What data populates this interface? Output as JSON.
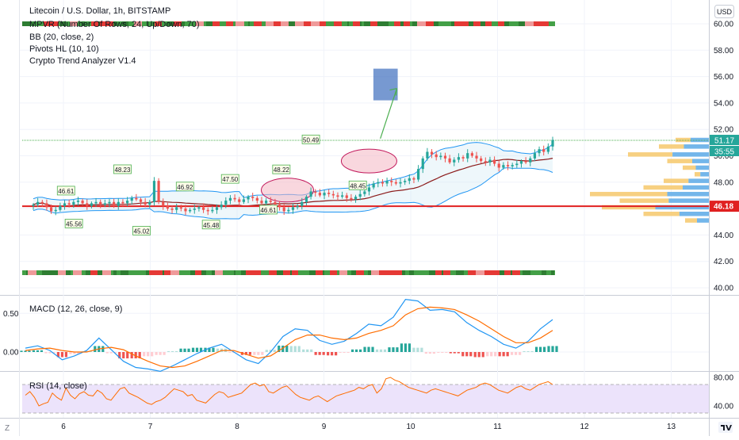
{
  "header": {
    "symbol_title": "Litecoin / U.S. Dollar, 1h, BITSTAMP",
    "indicators": [
      "MPVR (Number Of Rows, 24, Up/Down, 70)",
      "BB (20, close, 2)",
      "Pivots HL (10, 10)",
      "Crypto Trend Analyzer V1.4"
    ]
  },
  "currency_button": "USD",
  "scale_icons": {
    "left": "Z",
    "right": "tradingview-logo-icon"
  },
  "colors": {
    "up": "#26a69a",
    "down": "#ef5350",
    "bb": "#2196f3",
    "basis": "#8b1a1a",
    "support": "#e02020",
    "target_box": "#4a77c2",
    "macd": "#2196f3",
    "signal": "#ff6d00",
    "rsi": "#ff6d00",
    "rsi_band": "#ece3fb"
  },
  "chart_data": [
    {
      "type": "candlestick",
      "name": "price",
      "x_ticks": [
        "6",
        "7",
        "8",
        "9",
        "10",
        "11",
        "12",
        "13"
      ],
      "y_ticks": [
        "40.00",
        "42.00",
        "44.00",
        "46.00",
        "48.00",
        "50.00",
        "52.00",
        "54.00",
        "56.00",
        "58.00",
        "60.00"
      ],
      "ylim": [
        39.6,
        61.2
      ],
      "current_price": "51.17",
      "countdown": "35:55",
      "support_level": "46.18",
      "pivot_labels": [
        {
          "t": 0.3,
          "text": "46.61",
          "kind": "high"
        },
        {
          "t": 1.2,
          "text": "45.56",
          "kind": "low"
        },
        {
          "t": 6.8,
          "text": "48.23",
          "kind": "high"
        },
        {
          "t": 9.0,
          "text": "45.02",
          "kind": "low"
        },
        {
          "t": 14.0,
          "text": "46.92",
          "kind": "high"
        },
        {
          "t": 17.0,
          "text": "45.48",
          "kind": "low"
        },
        {
          "t": 19.2,
          "text": "47.50",
          "kind": "high"
        },
        {
          "t": 23.6,
          "text": "46.61",
          "kind": "low"
        },
        {
          "t": 25.1,
          "text": "48.22",
          "kind": "high"
        },
        {
          "t": 28.5,
          "text": "50.49",
          "kind": "high"
        },
        {
          "t": 33.9,
          "text": "48.45",
          "kind": "low"
        }
      ],
      "target_zone": {
        "t_from": 35.7,
        "t_to": 38.5,
        "low": 54.2,
        "high": 56.6
      },
      "arrow": {
        "t_from": 36.5,
        "t_to": 38.4,
        "from": 51.3,
        "to": 55.1
      },
      "closes": [
        46.3,
        46.5,
        46.4,
        46.1,
        45.8,
        45.9,
        46.2,
        46.4,
        46.3,
        46.5,
        46.6,
        46.4,
        46.2,
        46.4,
        46.5,
        46.3,
        46.4,
        46.5,
        46.2,
        46.5,
        46.4,
        46.6,
        46.8,
        46.7,
        46.5,
        46.3,
        46.5,
        48.1,
        46.5,
        46.2,
        46.0,
        45.9,
        46.1,
        46.0,
        45.8,
        45.9,
        46.0,
        46.1,
        45.9,
        45.8,
        45.9,
        46.1,
        46.3,
        46.6,
        46.8,
        46.7,
        46.5,
        46.7,
        46.9,
        46.8,
        46.6,
        46.4,
        46.6,
        46.5,
        46.3,
        46.1,
        45.8,
        45.9,
        46.1,
        46.2,
        46.5,
        46.9,
        47.3,
        47.2,
        47.0,
        47.2,
        47.1,
        47.0,
        46.9,
        47.0,
        46.8,
        46.7,
        46.9,
        47.1,
        47.3,
        47.6,
        47.9,
        48.0,
        47.9,
        48.1,
        48.0,
        47.9,
        48.0,
        48.1,
        48.3,
        48.2,
        49.0,
        49.8,
        50.3,
        50.1,
        49.9,
        50.0,
        49.8,
        49.5,
        49.7,
        49.9,
        49.8,
        50.2,
        50.0,
        49.8,
        49.6,
        49.5,
        49.7,
        49.4,
        49.1,
        49.3,
        49.2,
        49.3,
        49.4,
        49.6,
        49.5,
        49.8,
        50.2,
        50.5,
        50.3,
        50.7,
        51.2
      ],
      "volume_profile": [
        {
          "price": 51.2,
          "total": 0.28,
          "up": 0.55
        },
        {
          "price": 50.7,
          "total": 0.42,
          "up": 0.5
        },
        {
          "price": 50.1,
          "total": 0.68,
          "up": 0.45
        },
        {
          "price": 49.6,
          "total": 0.35,
          "up": 0.4
        },
        {
          "price": 49.1,
          "total": 0.22,
          "up": 0.5
        },
        {
          "price": 48.6,
          "total": 0.12,
          "up": 0.6
        },
        {
          "price": 48.1,
          "total": 0.38,
          "up": 0.45
        },
        {
          "price": 47.6,
          "total": 0.55,
          "up": 0.4
        },
        {
          "price": 47.1,
          "total": 1.0,
          "up": 0.35
        },
        {
          "price": 46.6,
          "total": 0.75,
          "up": 0.45
        },
        {
          "price": 46.1,
          "total": 0.9,
          "up": 0.5
        },
        {
          "price": 45.6,
          "total": 0.55,
          "up": 0.45
        },
        {
          "price": 45.1,
          "total": 0.2,
          "up": 0.5
        }
      ]
    },
    {
      "type": "line",
      "name": "MACD (12, 26, close, 9)",
      "y_ticks": [
        "0.50",
        "0.00"
      ],
      "ylim": [
        -0.38,
        0.78
      ],
      "macd": [
        0.05,
        0.08,
        0.02,
        -0.1,
        -0.05,
        0.02,
        0.18,
        0.03,
        -0.12,
        -0.2,
        -0.22,
        -0.25,
        -0.18,
        -0.1,
        -0.02,
        0.05,
        0.1,
        0.0,
        -0.1,
        -0.15,
        0.0,
        0.2,
        0.3,
        0.28,
        0.15,
        0.1,
        0.14,
        0.24,
        0.36,
        0.34,
        0.45,
        0.68,
        0.66,
        0.54,
        0.55,
        0.52,
        0.38,
        0.28,
        0.2,
        0.1,
        0.05,
        0.14,
        0.3,
        0.42
      ],
      "signal": [
        0.02,
        0.04,
        0.05,
        0.02,
        0.0,
        0.0,
        0.04,
        0.06,
        0.03,
        -0.05,
        -0.12,
        -0.18,
        -0.2,
        -0.18,
        -0.12,
        -0.05,
        0.02,
        0.02,
        -0.03,
        -0.08,
        -0.05,
        0.05,
        0.16,
        0.22,
        0.22,
        0.18,
        0.16,
        0.18,
        0.24,
        0.28,
        0.34,
        0.48,
        0.56,
        0.58,
        0.57,
        0.55,
        0.48,
        0.4,
        0.3,
        0.2,
        0.12,
        0.12,
        0.18,
        0.28
      ]
    },
    {
      "type": "line",
      "name": "RSI (14, close)",
      "y_ticks": [
        "80.00",
        "40.00"
      ],
      "ylim": [
        31,
        83
      ],
      "band": [
        30,
        70
      ],
      "values": [
        55,
        60,
        52,
        40,
        43,
        45,
        58,
        52,
        48,
        65,
        55,
        50,
        57,
        60,
        55,
        54,
        62,
        58,
        50,
        48,
        56,
        64,
        66,
        58,
        55,
        52,
        48,
        44,
        42,
        46,
        48,
        52,
        58,
        64,
        62,
        60,
        54,
        56,
        48,
        46,
        44,
        50,
        56,
        60,
        58,
        52,
        54,
        56,
        58,
        64,
        70,
        72,
        68,
        70,
        60,
        58,
        62,
        66,
        68,
        62,
        56,
        52,
        50,
        48,
        52,
        54,
        50,
        46,
        50,
        54,
        56,
        58,
        60,
        62,
        66,
        64,
        68,
        70,
        58,
        64,
        78,
        80,
        76,
        74,
        70,
        66,
        64,
        62,
        60,
        58,
        62,
        64,
        62,
        60,
        58,
        56,
        54,
        58,
        62,
        64,
        66,
        70,
        72,
        70,
        66,
        62,
        60,
        58,
        62,
        66,
        68,
        64,
        62,
        66,
        70,
        72,
        74,
        70
      ]
    }
  ]
}
